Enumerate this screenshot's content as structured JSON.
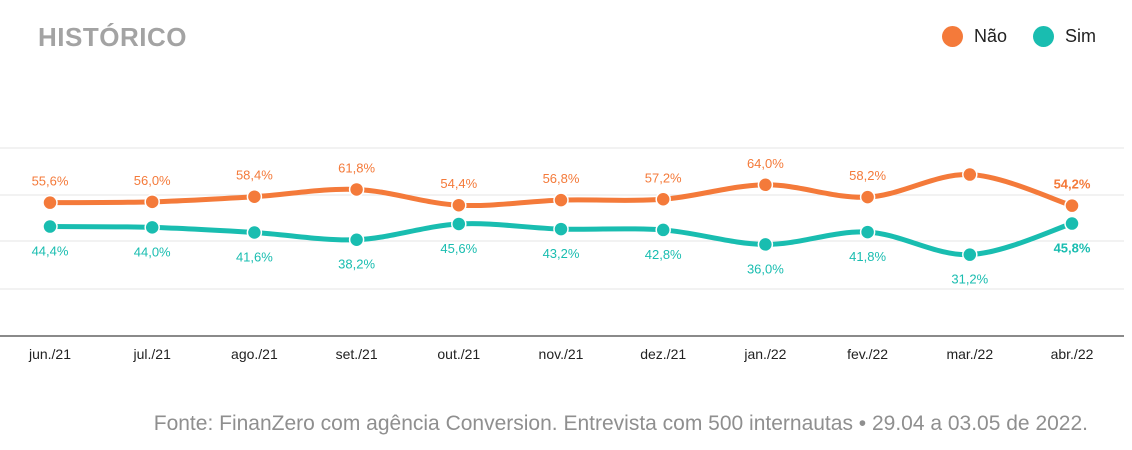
{
  "header": {
    "title": "HISTÓRICO"
  },
  "legend": [
    {
      "label": "Não",
      "color": "#f47a3a"
    },
    {
      "label": "Sim",
      "color": "#19bdb0"
    }
  ],
  "chart_data": {
    "type": "line",
    "title": "HISTÓRICO",
    "categories": [
      "jun./21",
      "jul./21",
      "ago./21",
      "set./21",
      "out./21",
      "nov./21",
      "dez./21",
      "jan./22",
      "fev./22",
      "mar./22",
      "abr./22"
    ],
    "series": [
      {
        "name": "Não",
        "color": "#f47a3a",
        "values": [
          55.6,
          56.0,
          58.4,
          61.8,
          54.4,
          56.8,
          57.2,
          64.0,
          58.2,
          68.8,
          54.2
        ],
        "labels": [
          "55,6%",
          "56,0%",
          "58,4%",
          "61,8%",
          "54,4%",
          "56,8%",
          "57,2%",
          "64,0%",
          "58,2%",
          "",
          "54,2%"
        ]
      },
      {
        "name": "Sim",
        "color": "#19bdb0",
        "values": [
          44.4,
          44.0,
          41.6,
          38.2,
          45.6,
          43.2,
          42.8,
          36.0,
          41.8,
          31.2,
          45.8
        ],
        "labels": [
          "44,4%",
          "44,0%",
          "41,6%",
          "38,2%",
          "45,6%",
          "43,2%",
          "42,8%",
          "36,0%",
          "41,8%",
          "31,2%",
          "45,8%"
        ]
      }
    ],
    "legend_position": "top-right",
    "grid": true
  },
  "footer": {
    "source": "Fonte: FinanZero com agência Conversion. Entrevista com 500 internautas • 29.04 a 03.05 de 2022."
  }
}
